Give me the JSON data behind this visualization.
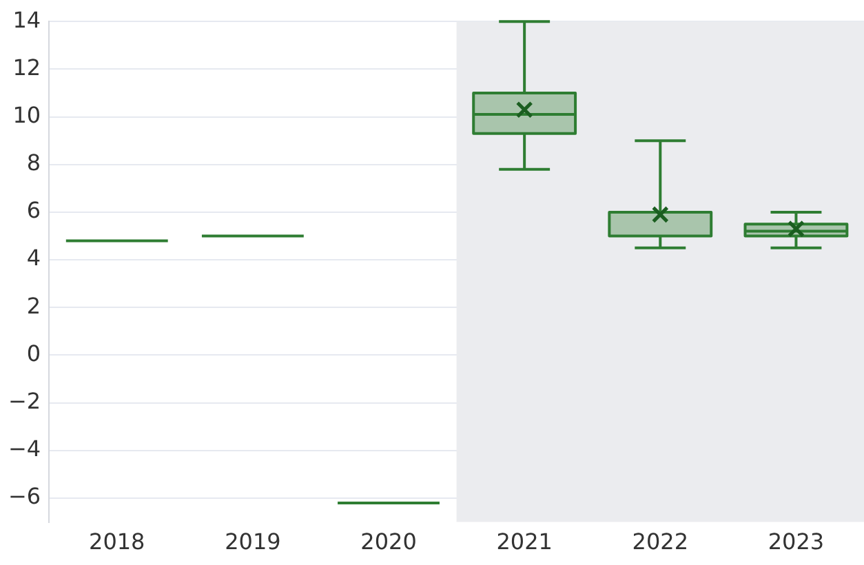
{
  "chart_data": {
    "type": "box",
    "categories": [
      "2018",
      "2019",
      "2020",
      "2021",
      "2022",
      "2023"
    ],
    "series": [
      {
        "color": "#2e7d32",
        "boxes": [
          {
            "low": 4.8,
            "q1": 4.8,
            "median": 4.8,
            "q3": 4.8,
            "high": 4.8
          },
          {
            "low": 5.0,
            "q1": 5.0,
            "median": 5.0,
            "q3": 5.0,
            "high": 5.0
          },
          {
            "low": -6.2,
            "q1": -6.2,
            "median": -6.2,
            "q3": -6.2,
            "high": -6.2
          },
          {
            "low": 7.8,
            "q1": 9.3,
            "median": 10.1,
            "q3": 11.0,
            "high": 14.0,
            "mean": 10.3
          },
          {
            "low": 4.5,
            "q1": 5.0,
            "median": 6.0,
            "q3": 6.0,
            "high": 9.0,
            "mean": 5.9
          },
          {
            "low": 4.5,
            "q1": 5.0,
            "median": 5.2,
            "q3": 5.5,
            "high": 6.0,
            "mean": 5.3
          }
        ]
      }
    ],
    "ylim": [
      -7,
      14
    ],
    "yticks": [
      -6,
      -4,
      -2,
      0,
      2,
      4,
      6,
      8,
      10,
      12,
      14
    ],
    "grid": "y",
    "marker": "cross",
    "bands": [
      {
        "axis": "x",
        "from": "2021",
        "to": "2023",
        "color": "#ebecef"
      }
    ]
  }
}
